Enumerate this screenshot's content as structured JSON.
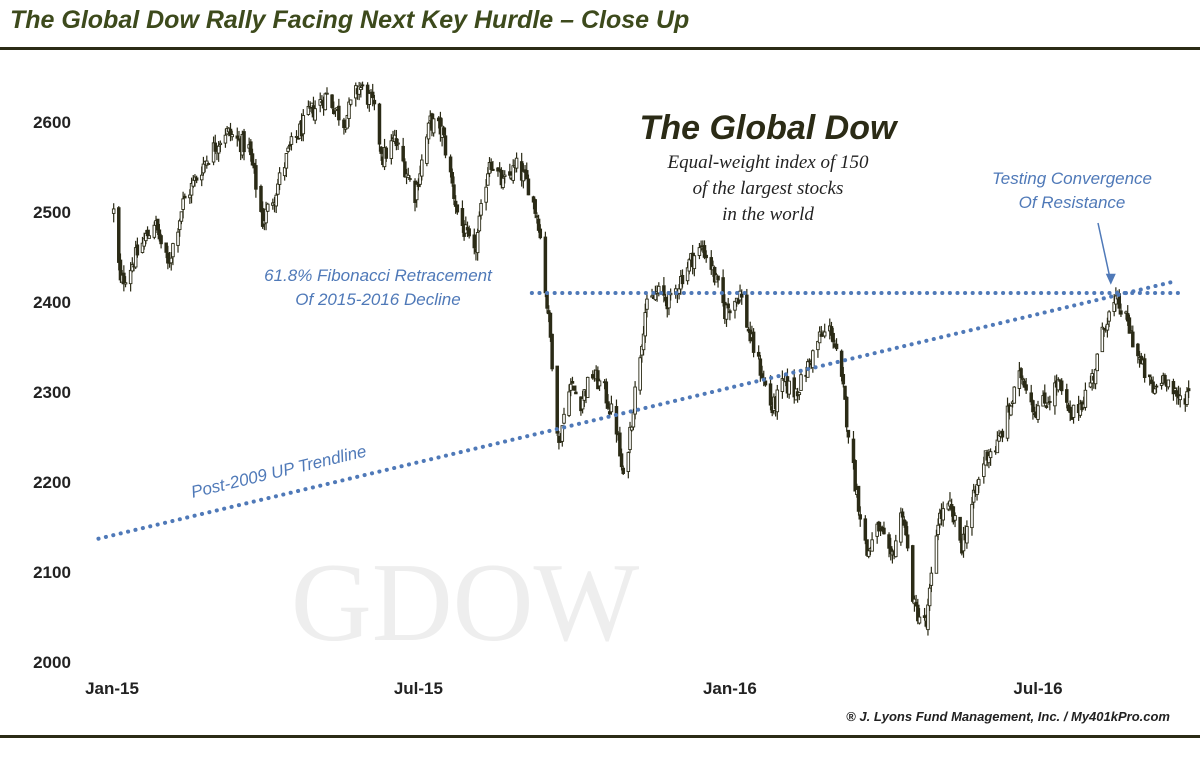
{
  "page": {
    "title": "The Global Dow Rally Facing Next Key Hurdle – Close Up",
    "copyright": "® J. Lyons Fund Management, Inc. / My401kPro.com"
  },
  "chart_data": {
    "type": "candlestick",
    "title": "The Global Dow",
    "subtitle": [
      "Equal-weight index of 150",
      "of the largest stocks",
      "in the world"
    ],
    "watermark": "GDOW",
    "xlabel": "",
    "ylabel": "",
    "ylim": [
      2000,
      2650
    ],
    "y_ticks": [
      2000,
      2100,
      2200,
      2300,
      2400,
      2500,
      2600
    ],
    "x_range": [
      "2015-01-01",
      "2016-09-15"
    ],
    "x_ticks": [
      {
        "date": "2015-01-01",
        "label": "Jan-15"
      },
      {
        "date": "2015-07-01",
        "label": "Jul-15"
      },
      {
        "date": "2016-01-01",
        "label": "Jan-16"
      },
      {
        "date": "2016-07-01",
        "label": "Jul-16"
      }
    ],
    "grid": false,
    "legend": "none",
    "candle_color": "#2b2b16",
    "price_path": [
      {
        "date": "2015-01-02",
        "close": 2500
      },
      {
        "date": "2015-01-06",
        "close": 2420
      },
      {
        "date": "2015-01-15",
        "close": 2450
      },
      {
        "date": "2015-01-26",
        "close": 2490
      },
      {
        "date": "2015-02-03",
        "close": 2440
      },
      {
        "date": "2015-02-12",
        "close": 2510
      },
      {
        "date": "2015-02-26",
        "close": 2560
      },
      {
        "date": "2015-03-09",
        "close": 2590
      },
      {
        "date": "2015-03-23",
        "close": 2570
      },
      {
        "date": "2015-03-31",
        "close": 2490
      },
      {
        "date": "2015-04-07",
        "close": 2520
      },
      {
        "date": "2015-04-16",
        "close": 2570
      },
      {
        "date": "2015-04-28",
        "close": 2610
      },
      {
        "date": "2015-05-08",
        "close": 2630
      },
      {
        "date": "2015-05-18",
        "close": 2600
      },
      {
        "date": "2015-05-27",
        "close": 2640
      },
      {
        "date": "2015-06-04",
        "close": 2620
      },
      {
        "date": "2015-06-10",
        "close": 2560
      },
      {
        "date": "2015-06-17",
        "close": 2580
      },
      {
        "date": "2015-06-29",
        "close": 2520
      },
      {
        "date": "2015-07-08",
        "close": 2600
      },
      {
        "date": "2015-07-15",
        "close": 2590
      },
      {
        "date": "2015-07-24",
        "close": 2500
      },
      {
        "date": "2015-08-03",
        "close": 2450
      },
      {
        "date": "2015-08-12",
        "close": 2560
      },
      {
        "date": "2015-08-20",
        "close": 2530
      },
      {
        "date": "2015-08-28",
        "close": 2550
      },
      {
        "date": "2015-09-04",
        "close": 2530
      },
      {
        "date": "2015-09-10",
        "close": 2490
      },
      {
        "date": "2015-09-17",
        "close": 2360
      },
      {
        "date": "2015-09-22",
        "close": 2240
      },
      {
        "date": "2015-09-28",
        "close": 2310
      },
      {
        "date": "2015-10-05",
        "close": 2290
      },
      {
        "date": "2015-10-12",
        "close": 2320
      },
      {
        "date": "2015-10-19",
        "close": 2300
      },
      {
        "date": "2015-10-26",
        "close": 2260
      },
      {
        "date": "2015-10-30",
        "close": 2200
      },
      {
        "date": "2015-11-06",
        "close": 2300
      },
      {
        "date": "2015-11-12",
        "close": 2390
      },
      {
        "date": "2015-11-19",
        "close": 2410
      },
      {
        "date": "2015-11-27",
        "close": 2400
      },
      {
        "date": "2015-12-04",
        "close": 2430
      },
      {
        "date": "2015-12-10",
        "close": 2450
      },
      {
        "date": "2015-12-16",
        "close": 2460
      },
      {
        "date": "2015-12-21",
        "close": 2440
      },
      {
        "date": "2015-12-29",
        "close": 2390
      },
      {
        "date": "2016-01-07",
        "close": 2410
      },
      {
        "date": "2016-01-13",
        "close": 2360
      },
      {
        "date": "2016-01-20",
        "close": 2320
      },
      {
        "date": "2016-01-26",
        "close": 2280
      },
      {
        "date": "2016-02-02",
        "close": 2310
      },
      {
        "date": "2016-02-08",
        "close": 2300
      },
      {
        "date": "2016-02-12",
        "close": 2310
      },
      {
        "date": "2016-02-23",
        "close": 2360
      },
      {
        "date": "2016-03-01",
        "close": 2370
      },
      {
        "date": "2016-03-08",
        "close": 2300
      },
      {
        "date": "2016-03-15",
        "close": 2200
      },
      {
        "date": "2016-03-22",
        "close": 2120
      },
      {
        "date": "2016-03-29",
        "close": 2150
      },
      {
        "date": "2016-04-05",
        "close": 2110
      },
      {
        "date": "2016-04-12",
        "close": 2170
      },
      {
        "date": "2016-04-19",
        "close": 2060
      },
      {
        "date": "2016-04-26",
        "close": 2040
      },
      {
        "date": "2016-05-03",
        "close": 2160
      },
      {
        "date": "2016-05-10",
        "close": 2170
      },
      {
        "date": "2016-05-17",
        "close": 2130
      },
      {
        "date": "2016-05-24",
        "close": 2180
      },
      {
        "date": "2016-05-31",
        "close": 2230
      },
      {
        "date": "2016-06-07",
        "close": 2240
      },
      {
        "date": "2016-06-14",
        "close": 2280
      },
      {
        "date": "2016-06-21",
        "close": 2320
      },
      {
        "date": "2016-06-24",
        "close": 2310
      },
      {
        "date": "2016-06-29",
        "close": 2280
      },
      {
        "date": "2016-07-06",
        "close": 2290
      },
      {
        "date": "2016-07-13",
        "close": 2310
      },
      {
        "date": "2016-07-20",
        "close": 2270
      },
      {
        "date": "2016-07-27",
        "close": 2290
      },
      {
        "date": "2016-08-03",
        "close": 2320
      },
      {
        "date": "2016-08-10",
        "close": 2380
      },
      {
        "date": "2016-08-17",
        "close": 2400
      },
      {
        "date": "2016-08-24",
        "close": 2370
      },
      {
        "date": "2016-08-31",
        "close": 2330
      },
      {
        "date": "2016-09-07",
        "close": 2300
      },
      {
        "date": "2016-09-14",
        "close": 2320
      },
      {
        "date": "2016-09-21",
        "close": 2290
      },
      {
        "date": "2016-09-28",
        "close": 2300
      }
    ],
    "reference_lines": [
      {
        "kind": "horizontal",
        "value": 2410,
        "from": "2015-09-06",
        "label": [
          "61.8% Fibonacci Retracement",
          "Of 2015-2016 Decline"
        ],
        "color": "#4f79b8"
      },
      {
        "kind": "trend",
        "start": {
          "date": "2014-12-24",
          "value": 2137
        },
        "end": {
          "date": "2016-09-20",
          "value": 2423
        },
        "label": "Post-2009 UP Trendline",
        "color": "#4f79b8"
      }
    ],
    "annotations": [
      {
        "text": [
          "Testing Convergence",
          "Of Resistance"
        ],
        "points_to": {
          "date": "2016-08-13",
          "value": 2418
        },
        "color": "#4f79b8"
      }
    ]
  }
}
